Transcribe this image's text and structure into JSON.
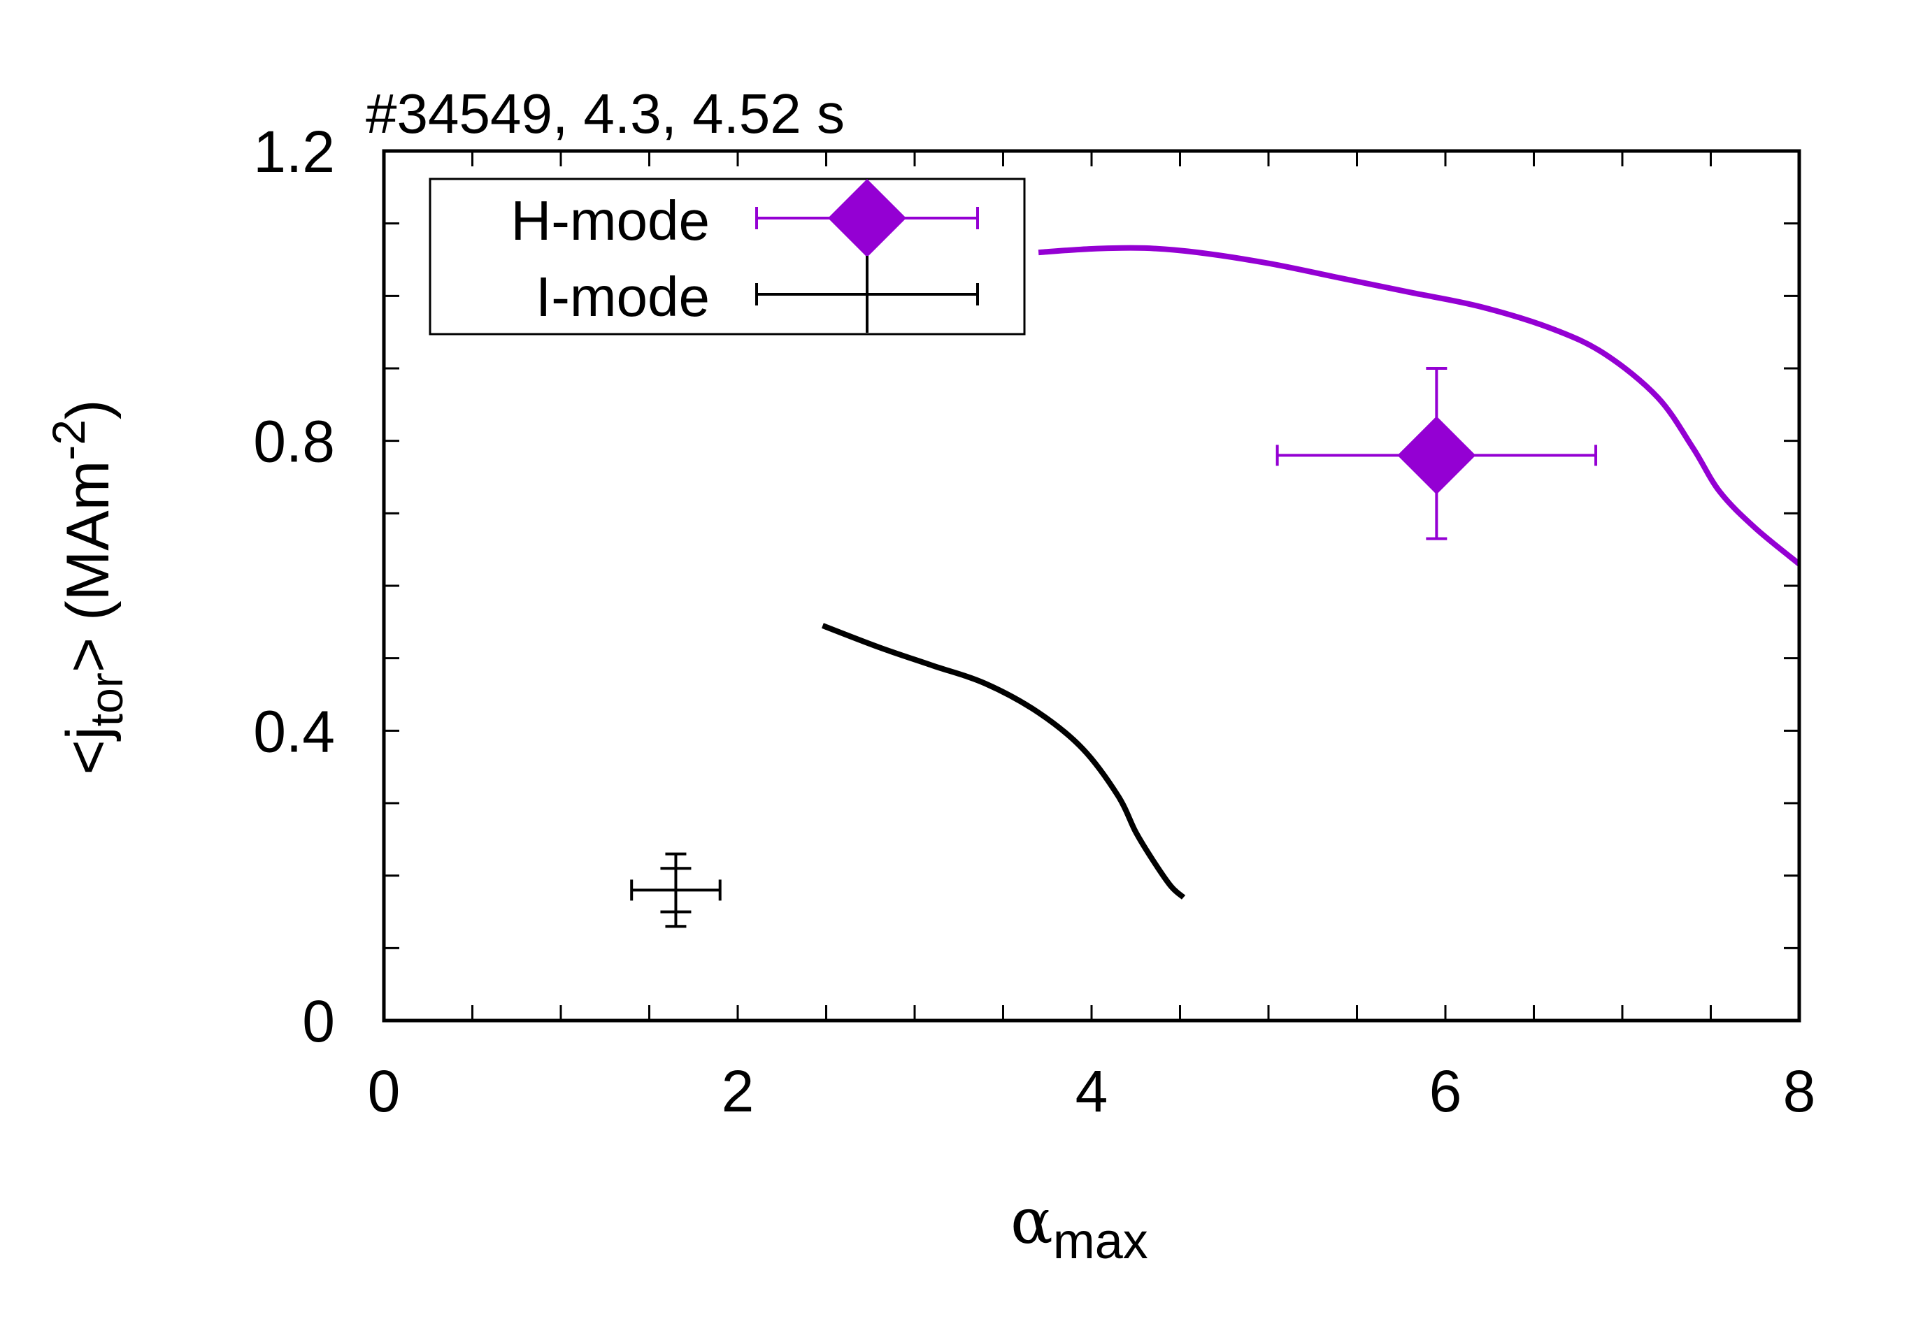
{
  "chart_data": {
    "type": "line",
    "title": "#34549, 4.3, 4.52 s",
    "xlabel": {
      "base": "α",
      "sub": "max"
    },
    "ylabel": {
      "pre": "<j",
      "sub": "tor",
      "post": "> (MAm",
      "sup": "-2",
      "end": ")"
    },
    "xlim": [
      0,
      8
    ],
    "ylim": [
      0,
      1.2
    ],
    "xticks": [
      0,
      2,
      4,
      6,
      8
    ],
    "xtick_labels": [
      "0",
      "2",
      "4",
      "6",
      "8"
    ],
    "yticks": [
      0,
      0.4,
      0.8,
      1.2
    ],
    "ytick_labels": [
      "0",
      "0.4",
      "0.8",
      "1.2"
    ],
    "x_minor_step": 0.5,
    "y_minor_step": 0.1,
    "grid": false,
    "legend_position": "top-left",
    "series": [
      {
        "name": "H-mode",
        "color": "#9400d3",
        "kind": "curve",
        "x": [
          3.7,
          4.0,
          4.3,
          4.6,
          5.0,
          5.4,
          5.8,
          6.2,
          6.6,
          6.9,
          7.2,
          7.4,
          7.55,
          7.75,
          8.0
        ],
        "y": [
          1.06,
          1.065,
          1.066,
          1.06,
          1.045,
          1.025,
          1.005,
          0.985,
          0.955,
          0.92,
          0.86,
          0.79,
          0.73,
          0.68,
          0.63
        ]
      },
      {
        "name": "H-mode",
        "color": "#9400d3",
        "kind": "errorpoint",
        "marker": "diamond",
        "x": 5.95,
        "y": 0.78,
        "xerr": [
          5.05,
          6.85
        ],
        "yerr": [
          0.665,
          0.9
        ]
      },
      {
        "name": "I-mode",
        "color": "#000000",
        "kind": "curve",
        "x": [
          2.48,
          2.8,
          3.1,
          3.4,
          3.7,
          3.95,
          4.15,
          4.25,
          4.35,
          4.45,
          4.52
        ],
        "y": [
          0.545,
          0.515,
          0.49,
          0.465,
          0.425,
          0.375,
          0.31,
          0.26,
          0.22,
          0.185,
          0.17
        ]
      },
      {
        "name": "I-mode",
        "color": "#000000",
        "kind": "errorpoint",
        "marker": "none",
        "x": 1.65,
        "y": 0.18,
        "xerr": [
          1.4,
          1.9
        ],
        "yerr": [
          0.13,
          0.23
        ],
        "caps_y": [
          0.21,
          0.15
        ]
      }
    ],
    "legend": [
      {
        "label": "H-mode",
        "color": "#9400d3",
        "marker": "diamond"
      },
      {
        "label": "I-mode",
        "color": "#000000",
        "marker": "none"
      }
    ]
  }
}
